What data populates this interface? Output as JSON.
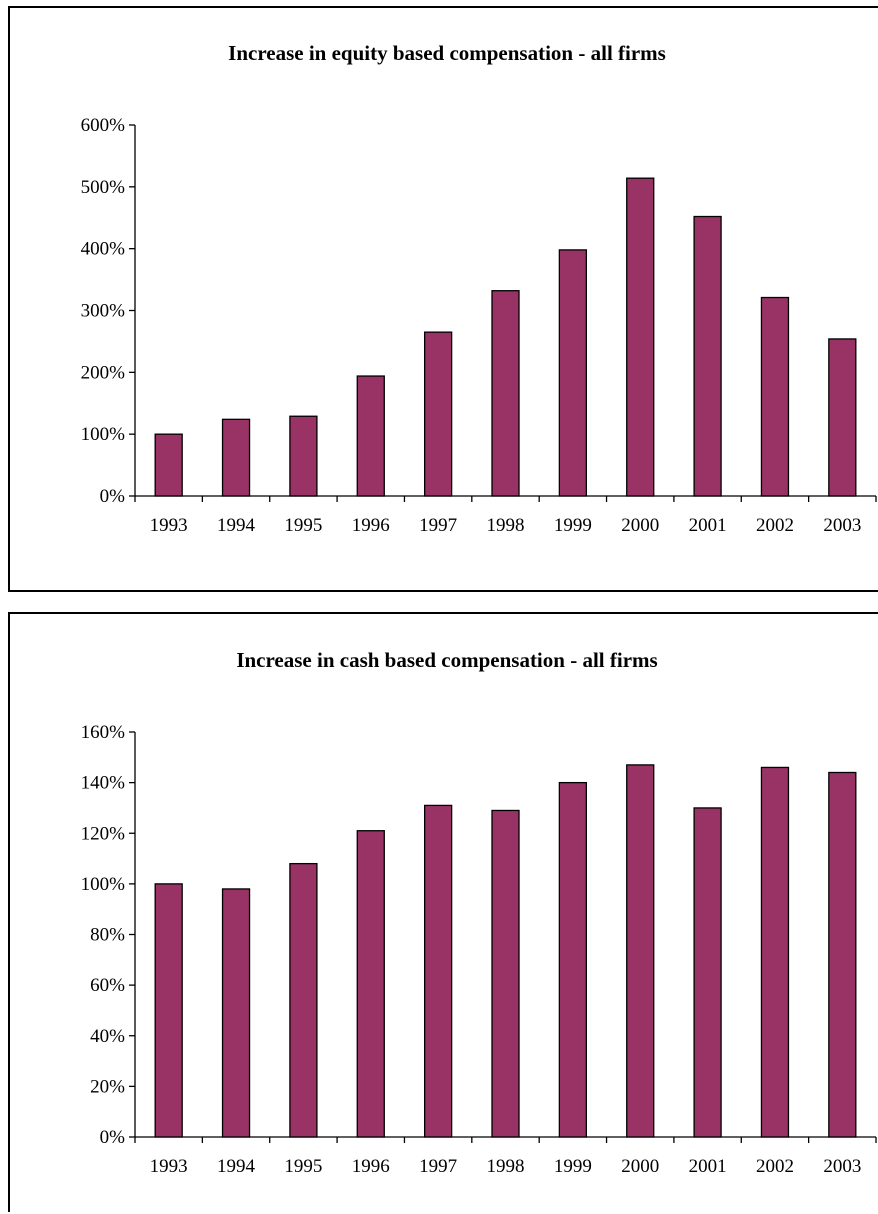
{
  "chart_data": [
    {
      "type": "bar",
      "title": "Increase in equity based compensation - all firms",
      "categories": [
        "1993",
        "1994",
        "1995",
        "1996",
        "1997",
        "1998",
        "1999",
        "2000",
        "2001",
        "2002",
        "2003"
      ],
      "values": [
        100,
        124,
        129,
        194,
        265,
        332,
        398,
        514,
        452,
        321,
        254
      ],
      "yticks": [
        "0%",
        "100%",
        "200%",
        "300%",
        "400%",
        "500%",
        "600%"
      ],
      "ylim": [
        0,
        600
      ],
      "xlabel": "",
      "ylabel": "",
      "grid": false,
      "bar_color": "#993366"
    },
    {
      "type": "bar",
      "title": "Increase in cash based compensation - all firms",
      "categories": [
        "1993",
        "1994",
        "1995",
        "1996",
        "1997",
        "1998",
        "1999",
        "2000",
        "2001",
        "2002",
        "2003"
      ],
      "values": [
        100,
        98,
        108,
        121,
        131,
        129,
        140,
        147,
        130,
        146,
        144
      ],
      "yticks": [
        "0%",
        "20%",
        "40%",
        "60%",
        "80%",
        "100%",
        "120%",
        "140%",
        "160%"
      ],
      "ylim": [
        0,
        160
      ],
      "xlabel": "",
      "ylabel": "",
      "grid": false,
      "bar_color": "#993366"
    }
  ]
}
